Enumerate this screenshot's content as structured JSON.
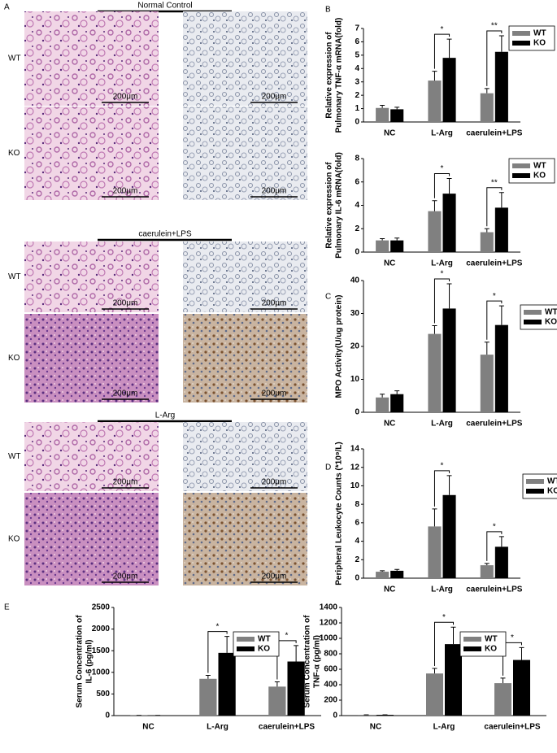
{
  "panel_a": {
    "label": "A",
    "groups": [
      {
        "title": "Normal Control",
        "rows": [
          {
            "label": "WT",
            "scales": [
              "200μm",
              "200μm"
            ]
          },
          {
            "label": "KO",
            "scales": [
              "200μm",
              "200μm"
            ]
          }
        ]
      },
      {
        "title": "caerulein+LPS",
        "rows": [
          {
            "label": "WT",
            "scales": [
              "200μm",
              "200μm"
            ]
          },
          {
            "label": "KO",
            "scales": [
              "200μm",
              "200μm"
            ]
          }
        ]
      },
      {
        "title": "L-Arg",
        "rows": [
          {
            "label": "WT",
            "scales": [
              "200μm",
              "200μm"
            ]
          },
          {
            "label": "KO",
            "scales": [
              "200μm",
              "200μm"
            ]
          }
        ]
      }
    ]
  },
  "chart_data": [
    {
      "type": "bar",
      "panel": "B",
      "ylabel": [
        "Relative expression of",
        "Pulmonary TNF-α mRNA(fold)"
      ],
      "categories": [
        "NC",
        "L-Arg",
        "caerulein+LPS"
      ],
      "ylim": [
        0,
        7
      ],
      "yticks": [
        0,
        1,
        2,
        3,
        4,
        5,
        6,
        7
      ],
      "series": [
        {
          "name": "WT",
          "color": "#808080",
          "values": [
            1.05,
            3.1,
            2.15
          ],
          "errors": [
            0.2,
            0.7,
            0.35
          ]
        },
        {
          "name": "KO",
          "color": "#000000",
          "values": [
            0.95,
            4.8,
            5.25
          ],
          "errors": [
            0.15,
            1.4,
            1.2
          ]
        }
      ],
      "annotations": [
        null,
        "*",
        "**"
      ]
    },
    {
      "type": "bar",
      "ylabel": [
        "Relative expression of",
        "Pulmonary IL-6 mRNA(fold)"
      ],
      "categories": [
        "NC",
        "L-Arg",
        "caerulein+LPS"
      ],
      "ylim": [
        0,
        8
      ],
      "yticks": [
        0,
        2,
        4,
        6,
        8
      ],
      "series": [
        {
          "name": "WT",
          "color": "#808080",
          "values": [
            1.0,
            3.5,
            1.7
          ],
          "errors": [
            0.15,
            0.9,
            0.3
          ]
        },
        {
          "name": "KO",
          "color": "#000000",
          "values": [
            1.0,
            5.0,
            3.8
          ],
          "errors": [
            0.2,
            1.3,
            1.3
          ]
        }
      ],
      "annotations": [
        null,
        "*",
        "**"
      ]
    },
    {
      "type": "bar",
      "panel": "C",
      "ylabel": [
        "MPO Activity(U/ug protein)"
      ],
      "categories": [
        "NC",
        "L-Arg",
        "caerulein+LPS"
      ],
      "ylim": [
        0,
        40
      ],
      "yticks": [
        0,
        10,
        20,
        30,
        40
      ],
      "series": [
        {
          "name": "WT",
          "color": "#808080",
          "values": [
            4.5,
            23.8,
            17.5
          ],
          "errors": [
            1,
            2.5,
            3.8
          ]
        },
        {
          "name": "KO",
          "color": "#000000",
          "values": [
            5.5,
            31.5,
            26.5
          ],
          "errors": [
            1,
            7.5,
            5.8
          ]
        }
      ],
      "annotations": [
        null,
        "*",
        "*"
      ]
    },
    {
      "type": "bar",
      "panel": "D",
      "ylabel": [
        "Peripheral Leukocyte Counts (*10⁹/L)"
      ],
      "categories": [
        "NC",
        "L-Arg",
        "caerulein+LPS"
      ],
      "ylim": [
        0,
        14
      ],
      "yticks": [
        0,
        2,
        4,
        6,
        8,
        10,
        12,
        14
      ],
      "series": [
        {
          "name": "WT",
          "color": "#808080",
          "values": [
            0.7,
            5.6,
            1.4
          ],
          "errors": [
            0.1,
            1.9,
            0.2
          ]
        },
        {
          "name": "KO",
          "color": "#000000",
          "values": [
            0.8,
            9.0,
            3.4
          ],
          "errors": [
            0.15,
            2.1,
            1.1
          ]
        }
      ],
      "annotations": [
        null,
        "*",
        "*"
      ]
    },
    {
      "type": "bar",
      "panel": "E",
      "ylabel": [
        "Serum Concentration of",
        "IL-6 (pg/ml)"
      ],
      "categories": [
        "NC",
        "L-Arg",
        "caerulein+LPS"
      ],
      "ylim": [
        0,
        2500
      ],
      "yticks": [
        0,
        500,
        1000,
        1500,
        2000,
        2500
      ],
      "series": [
        {
          "name": "WT",
          "color": "#808080",
          "values": [
            5,
            850,
            670
          ],
          "errors": [
            0,
            80,
            110
          ]
        },
        {
          "name": "KO",
          "color": "#000000",
          "values": [
            5,
            1450,
            1250
          ],
          "errors": [
            0,
            380,
            370
          ]
        }
      ],
      "annotations": [
        null,
        "*",
        "*"
      ]
    },
    {
      "type": "bar",
      "ylabel": [
        "Serum Concentration of",
        "TNF-α (pg/ml)"
      ],
      "categories": [
        "NC",
        "L-Arg",
        "caerulein+LPS"
      ],
      "ylim": [
        0,
        1400
      ],
      "yticks": [
        0,
        200,
        400,
        600,
        800,
        1000,
        1200,
        1400
      ],
      "series": [
        {
          "name": "WT",
          "color": "#808080",
          "values": [
            10,
            545,
            420
          ],
          "errors": [
            0,
            65,
            65
          ]
        },
        {
          "name": "KO",
          "color": "#000000",
          "values": [
            10,
            925,
            720
          ],
          "errors": [
            0,
            220,
            160
          ]
        }
      ],
      "annotations": [
        null,
        "*",
        "*"
      ]
    }
  ]
}
